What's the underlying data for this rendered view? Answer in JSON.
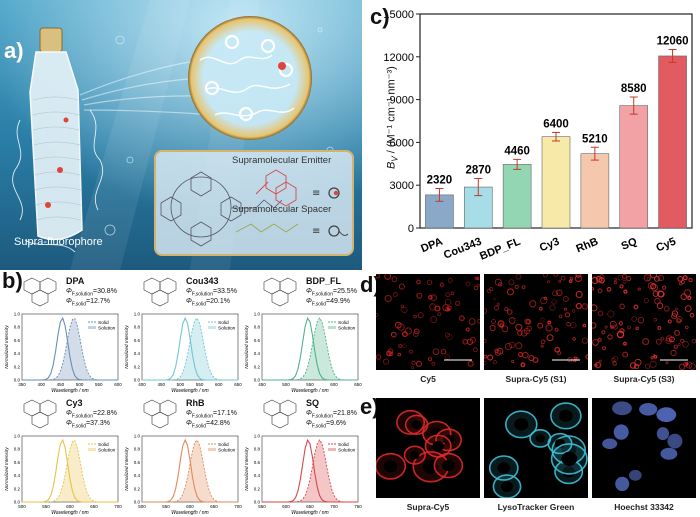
{
  "panel_a": {
    "letter": "a)",
    "supra_label": "Supra-fluorophore",
    "legend_emitter": "Supramolecular Emitter",
    "legend_spacer": "Supramolecular Spacer",
    "equals": "≡"
  },
  "panel_b": {
    "letter": "b)",
    "axis_x_label": "Wavelength / nm",
    "axis_y_label": "Normalized Intensity",
    "legend_solid": "Solid",
    "legend_solution": "Solution",
    "dyes": [
      {
        "name": "DPA",
        "phi_sol": "Φ",
        "sol_sub": "F,solution",
        "sol_val": "=30.8%",
        "solid_sub": "F,solid",
        "solid_val": "=12.7%",
        "color": "#6a8fb5",
        "ticks": [
          "350",
          "400",
          "450",
          "500",
          "550",
          "600"
        ],
        "ticks_y": [
          "0.0",
          "0.2",
          "0.4",
          "0.6",
          "0.8",
          "1.0"
        ]
      },
      {
        "name": "Cou343",
        "sol_sub": "F,solution",
        "sol_val": "=33.5%",
        "solid_sub": "F,solid",
        "solid_val": "=20.1%",
        "color": "#72c6d4",
        "ticks": [
          "400",
          "450",
          "500",
          "550",
          "600",
          "650"
        ],
        "ticks_y": [
          "0.0",
          "0.2",
          "0.4",
          "0.6",
          "0.8",
          "1.0"
        ]
      },
      {
        "name": "BDP_FL",
        "sol_sub": "F,solution",
        "sol_val": "=25.5%",
        "solid_sub": "F,solid",
        "solid_val": "=49.9%",
        "color": "#4fb38a",
        "ticks": [
          "450",
          "500",
          "550",
          "600",
          "650"
        ],
        "ticks_y": [
          "0.0",
          "0.2",
          "0.4",
          "0.6",
          "0.8",
          "1.0"
        ]
      },
      {
        "name": "Cy3",
        "sol_sub": "F,solution",
        "sol_val": "=22.8%",
        "solid_sub": "F,solid",
        "solid_val": "=37.3%",
        "color": "#e8c24a",
        "ticks": [
          "500",
          "550",
          "600",
          "650",
          "700"
        ],
        "ticks_y": [
          "0.0",
          "0.2",
          "0.4",
          "0.6",
          "0.8",
          "1.0"
        ]
      },
      {
        "name": "RhB",
        "sol_sub": "F,solution",
        "sol_val": "=17.1%",
        "solid_sub": "F,solid",
        "solid_val": "=42.8%",
        "color": "#e28a5a",
        "ticks": [
          "500",
          "550",
          "600",
          "650",
          "700"
        ],
        "ticks_y": [
          "0.0",
          "0.2",
          "0.4",
          "0.6",
          "0.8",
          "1.0"
        ]
      },
      {
        "name": "SQ",
        "sol_sub": "F,solution",
        "sol_val": "=21.8%",
        "solid_sub": "F,solid",
        "solid_val": "=9.6%",
        "color": "#d8464a",
        "ticks": [
          "550",
          "600",
          "650",
          "700",
          "750"
        ],
        "ticks_y": [
          "0.0",
          "0.2",
          "0.4",
          "0.6",
          "0.8",
          "1.0"
        ]
      }
    ]
  },
  "panel_c": {
    "letter": "c)",
    "chart_data": {
      "type": "bar",
      "categories": [
        "DPA",
        "Cou343",
        "BDP_FL",
        "Cy3",
        "RhB",
        "SQ",
        "Cy5"
      ],
      "values": [
        2320,
        2870,
        4460,
        6400,
        5210,
        8580,
        12060
      ],
      "value_labels": [
        "2320",
        "2870",
        "4460",
        "6400",
        "5210",
        "8580",
        "12060"
      ],
      "errors": [
        450,
        600,
        350,
        300,
        450,
        600,
        450
      ],
      "colors": [
        "#8aa9c9",
        "#a7dde6",
        "#93d6b4",
        "#f7e9a8",
        "#f5c8ad",
        "#f2a1a5",
        "#e25b60"
      ],
      "ylabel": "B_V / (M⁻¹ cm⁻¹ nm⁻³)",
      "ylabel_main": "B",
      "ylabel_sub": "V",
      "ylabel_rest": " / (M",
      "ylabel_units": "⁻¹ cm⁻¹ nm⁻³)",
      "ylim": [
        0,
        15000
      ],
      "yticks": [
        "0",
        "3000",
        "6000",
        "9000",
        "12000",
        "15000"
      ],
      "ytick_values": [
        0,
        3000,
        6000,
        9000,
        12000,
        15000
      ]
    }
  },
  "panel_d": {
    "letter": "d)",
    "captions": [
      "Cy5",
      "Supra-Cy5 (S1)",
      "Supra-Cy5 (S3)"
    ]
  },
  "panel_e": {
    "letter": "e)",
    "captions": [
      "Supra-Cy5",
      "LysoTracker Green",
      "Hoechst 33342"
    ]
  }
}
